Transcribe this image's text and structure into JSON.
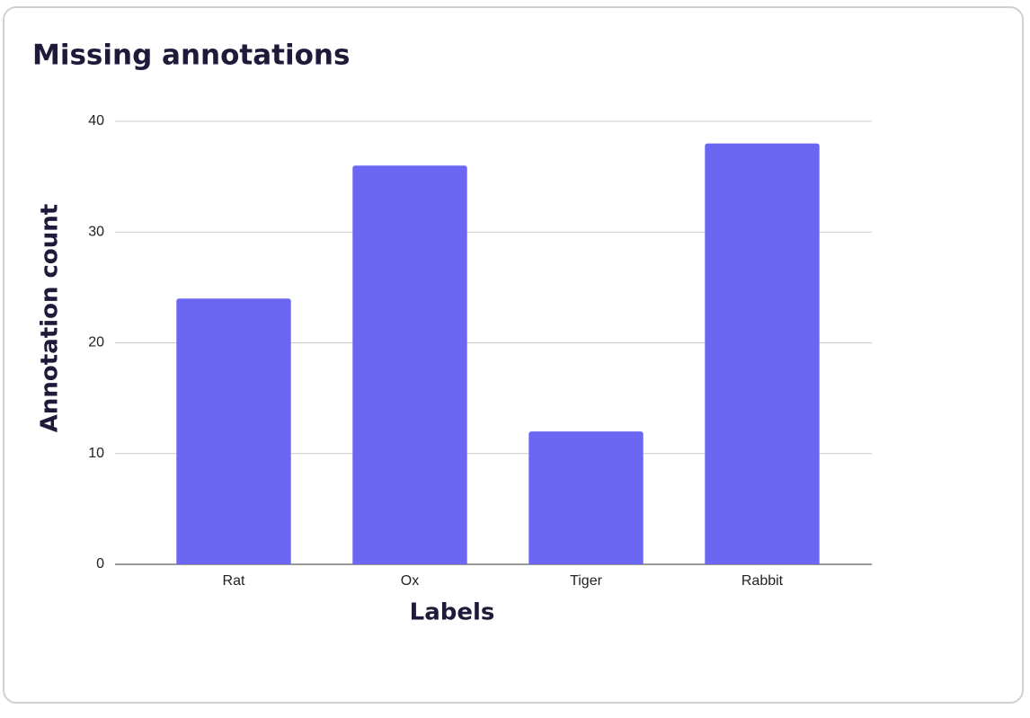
{
  "chart_data": {
    "type": "bar",
    "title": "Missing annotations",
    "x_label": "Labels",
    "y_label": "Annotation count",
    "categories": [
      "Rat",
      "Ox",
      "Tiger",
      "Rabbit"
    ],
    "values": [
      24,
      36,
      12,
      38
    ],
    "color": "#6c67f3",
    "ylim": [
      0,
      40
    ],
    "yticks": [
      0,
      10,
      20,
      30,
      40
    ],
    "grid": true
  }
}
